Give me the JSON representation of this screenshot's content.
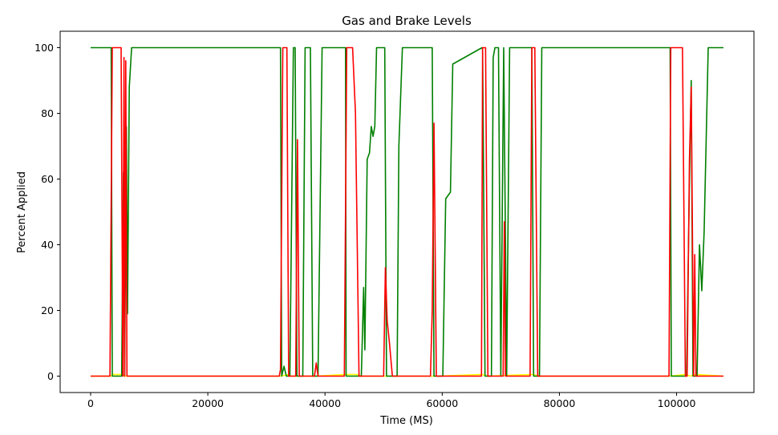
{
  "chart_data": {
    "type": "line",
    "title": "Gas and Brake Levels",
    "xlabel": "Time (MS)",
    "ylabel": "Percent Applied",
    "xlim": [
      -5200,
      113200
    ],
    "ylim": [
      -5,
      105
    ],
    "x_ticks": [
      0,
      20000,
      40000,
      60000,
      80000,
      100000
    ],
    "y_ticks": [
      0,
      20,
      40,
      60,
      80,
      100
    ],
    "grid": false,
    "legend": "none",
    "series": [
      {
        "color": "#ffff00",
        "x": [
          0,
          3500,
          3700,
          5500,
          5800,
          6200,
          32400,
          33800,
          34200,
          35600,
          36400,
          38500,
          43500,
          45300,
          46200,
          50500,
          51300,
          58500,
          59200,
          66800,
          67600,
          75400,
          76600,
          98800,
          101500,
          102300,
          103300,
          108000
        ],
        "y": [
          0,
          0,
          0.5,
          0.5,
          0,
          0,
          0,
          0.5,
          0,
          0,
          0,
          0,
          0.5,
          0.5,
          0,
          0,
          0,
          0,
          0,
          0.5,
          0,
          0.5,
          0,
          0,
          0.5,
          0,
          0.5,
          0
        ]
      },
      {
        "color": "#008000",
        "x": [
          0,
          3500,
          3700,
          5300,
          5600,
          5800,
          6100,
          6300,
          6600,
          7000,
          7300,
          32400,
          32600,
          33000,
          33400,
          34000,
          34600,
          34900,
          35200,
          35500,
          36000,
          36200,
          36600,
          37500,
          37900,
          38300,
          38800,
          39500,
          40000,
          43500,
          43600,
          44000,
          45500,
          45800,
          46200,
          46600,
          46800,
          47200,
          47600,
          47900,
          48200,
          48500,
          48800,
          49100,
          49400,
          50200,
          50500,
          50800,
          51400,
          52000,
          52300,
          52600,
          53200,
          58300,
          58600,
          59000,
          59400,
          60100,
          60600,
          61400,
          61800,
          66800,
          66900,
          67300,
          67600,
          68400,
          68700,
          69000,
          69600,
          70000,
          70500,
          71000,
          71500,
          75300,
          75600,
          76100,
          76600,
          77000,
          77500,
          98900,
          99100,
          101600,
          101700,
          102200,
          102500,
          102800,
          103100,
          103500,
          103900,
          104300,
          104700,
          105400,
          108000
        ],
        "y": [
          100,
          100,
          0,
          0,
          62,
          0,
          76,
          19,
          88,
          100,
          100,
          100,
          0,
          3,
          0,
          0,
          100,
          100,
          0,
          0,
          0,
          0,
          100,
          100,
          0,
          0,
          0,
          100,
          100,
          100,
          0,
          0,
          0,
          0,
          0,
          27,
          8,
          66,
          68,
          76,
          73,
          76,
          100,
          100,
          100,
          100,
          0,
          0,
          0,
          0,
          0,
          70,
          100,
          100,
          0,
          0,
          0,
          0,
          54,
          56,
          95,
          100,
          100,
          0,
          0,
          0,
          97,
          100,
          100,
          0,
          100,
          0,
          100,
          100,
          0,
          0,
          0,
          100,
          100,
          100,
          0,
          0,
          0,
          60,
          90,
          0,
          0,
          0,
          40,
          26,
          44,
          100,
          100
        ]
      },
      {
        "color": "#ff0000",
        "x": [
          0,
          3300,
          3700,
          5200,
          5500,
          5700,
          5800,
          6000,
          6200,
          32200,
          32400,
          32800,
          33500,
          33800,
          34200,
          34500,
          35000,
          35300,
          35600,
          36000,
          38200,
          38500,
          38800,
          43300,
          43700,
          44700,
          45200,
          45800,
          50000,
          50300,
          50600,
          51000,
          51500,
          52000,
          58000,
          58300,
          58600,
          59000,
          66700,
          66900,
          67400,
          67800,
          70400,
          70600,
          70800,
          71200,
          75000,
          75300,
          75800,
          76300,
          98700,
          99000,
          100500,
          101000,
          101500,
          101800,
          102200,
          102500,
          102900,
          103100,
          103300,
          104000,
          108000
        ],
        "y": [
          0,
          0,
          100,
          100,
          0,
          97,
          0,
          96,
          0,
          0,
          2,
          100,
          100,
          0,
          0,
          0,
          0,
          72,
          0,
          0,
          0,
          4,
          0,
          0,
          100,
          100,
          80,
          0,
          0,
          33,
          17,
          10,
          0,
          0,
          0,
          20,
          77,
          0,
          0,
          100,
          100,
          0,
          0,
          47,
          0,
          0,
          0,
          100,
          100,
          0,
          0,
          100,
          100,
          100,
          0,
          0,
          66,
          88,
          0,
          37,
          0,
          0,
          0
        ]
      }
    ]
  }
}
